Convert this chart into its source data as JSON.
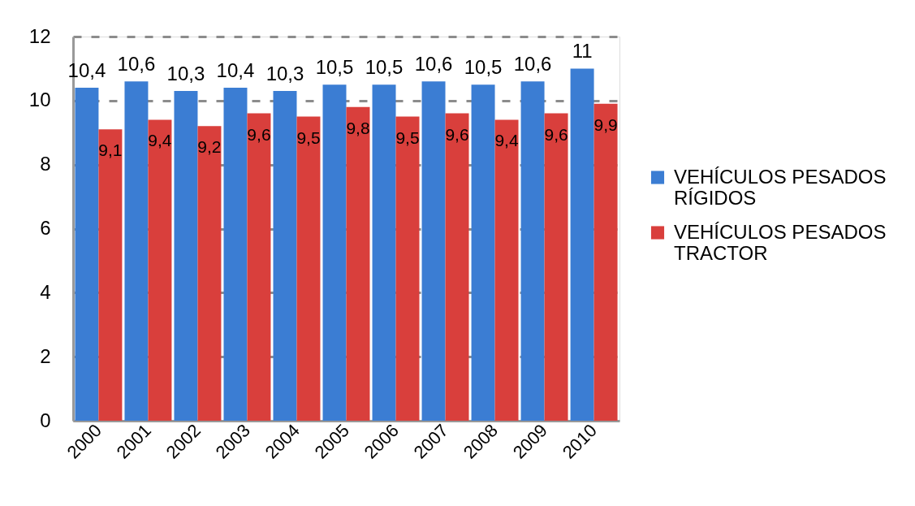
{
  "chart_data": {
    "type": "bar",
    "categories": [
      "2000",
      "2001",
      "2002",
      "2003",
      "2004",
      "2005",
      "2006",
      "2007",
      "2008",
      "2009",
      "2010"
    ],
    "series": [
      {
        "name": "VEHÍCULOS PESADOS RÍGIDOS",
        "color": "#3b7dd3",
        "values": [
          10.4,
          10.6,
          10.3,
          10.4,
          10.3,
          10.5,
          10.5,
          10.6,
          10.5,
          10.6,
          11
        ],
        "value_labels": [
          "10,4",
          "10,6",
          "10,3",
          "10,4",
          "10,3",
          "10,5",
          "10,5",
          "10,6",
          "10,5",
          "10,6",
          "11"
        ]
      },
      {
        "name": "VEHÍCULOS PESADOS TRACTOR",
        "color": "#d93f3c",
        "values": [
          9.1,
          9.4,
          9.2,
          9.6,
          9.5,
          9.8,
          9.5,
          9.6,
          9.4,
          9.6,
          9.9
        ],
        "value_labels": [
          "9,1",
          "9,4",
          "9,2",
          "9,6",
          "9,5",
          "9,8",
          "9,5",
          "9,6",
          "9,4",
          "9,6",
          "9,9"
        ]
      }
    ],
    "ylim": [
      0,
      12
    ],
    "yticks": [
      0,
      2,
      4,
      6,
      8,
      10,
      12
    ],
    "grid": "y",
    "legend": "right"
  }
}
